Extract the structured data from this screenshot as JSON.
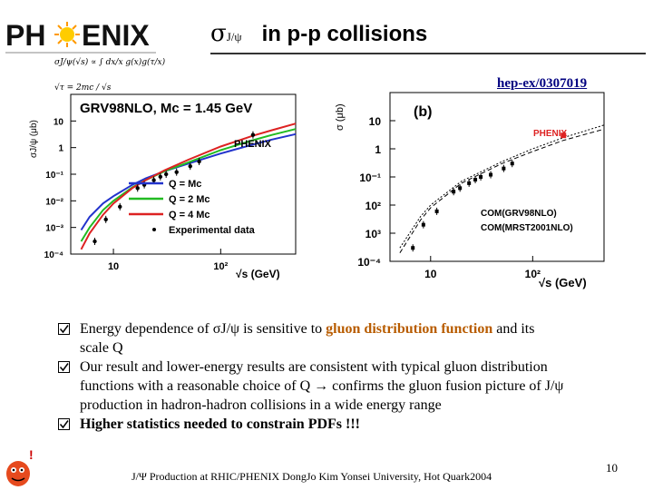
{
  "logo": {
    "text_left": "PH",
    "text_right": "ENIX"
  },
  "title": {
    "sigma": "σ",
    "subscript": "J/ψ",
    "rest": "in p-p collisions"
  },
  "reference": "hep-ex/0307019",
  "formulas": {
    "line1": "σJ/ψ(√s) ∝ ∫ dx/x g(x)g(τ/x)",
    "line2": "√τ = 2mc / √s"
  },
  "colors": {
    "blue": "#2233cc",
    "green": "#22bb22",
    "red": "#dd2222",
    "accent": "#b85c00",
    "link": "#000080"
  },
  "chart_data": [
    {
      "type": "line",
      "title": "GRV98NLO, Mc = 1.45 GeV",
      "annotation": "PHENIX",
      "ylabel": "σJ/ψ (μb)",
      "xlabel": "√s (GeV)",
      "log_x": true,
      "log_y": true,
      "xlim": [
        4,
        500
      ],
      "ylim": [
        0.0001,
        100
      ],
      "x_ticks": [
        "10",
        "10²"
      ],
      "y_ticks": [
        "10",
        "1",
        "10⁻¹",
        "10⁻²",
        "10⁻³",
        "10⁻⁴"
      ],
      "legend_placement": "bottom-right",
      "series": [
        {
          "name": "Q = Mc",
          "color": "#2233cc",
          "x": [
            5,
            6,
            8,
            10,
            15,
            20,
            30,
            50,
            100,
            200,
            300,
            500
          ],
          "y": [
            0.0008,
            0.0025,
            0.008,
            0.015,
            0.04,
            0.07,
            0.13,
            0.25,
            0.6,
            1.3,
            2.0,
            3.2
          ]
        },
        {
          "name": "Q = 2 Mc",
          "color": "#22bb22",
          "x": [
            5,
            6,
            8,
            10,
            15,
            20,
            30,
            50,
            100,
            200,
            300,
            500
          ],
          "y": [
            0.0003,
            0.001,
            0.0045,
            0.01,
            0.032,
            0.06,
            0.13,
            0.28,
            0.8,
            1.9,
            3.0,
            5.0
          ]
        },
        {
          "name": "Q = 4 Mc",
          "color": "#dd2222",
          "x": [
            5,
            6,
            8,
            10,
            15,
            20,
            30,
            50,
            100,
            200,
            300,
            500
          ],
          "y": [
            0.00015,
            0.0006,
            0.003,
            0.008,
            0.03,
            0.06,
            0.14,
            0.35,
            1.1,
            2.8,
            4.5,
            8.0
          ]
        },
        {
          "name": "Experimental data",
          "color": "#000000",
          "type": "scatter",
          "x": [
            6.7,
            8.5,
            11.5,
            16.8,
            19.4,
            23.8,
            27.4,
            31,
            38.8,
            52,
            63,
            200
          ],
          "y": [
            0.0003,
            0.002,
            0.006,
            0.03,
            0.04,
            0.06,
            0.08,
            0.1,
            0.12,
            0.2,
            0.3,
            3.0
          ]
        }
      ]
    },
    {
      "type": "scatter",
      "label": "(b)",
      "annotation": "PHENIX",
      "ylabel": "σ (μb)",
      "xlabel": "√s (GeV)",
      "log_x": true,
      "log_y": true,
      "xlim": [
        4,
        500
      ],
      "ylim": [
        0.0001,
        100
      ],
      "x_ticks": [
        "10",
        "10²"
      ],
      "y_ticks": [
        "10",
        "1",
        "10⁻¹",
        "10²",
        "10³",
        "10⁻⁴"
      ],
      "curves": [
        {
          "name": "COM(GRV98NLO)",
          "style": "dashed",
          "x": [
            5,
            8,
            10,
            20,
            50,
            100,
            200,
            500
          ],
          "y": [
            0.0002,
            0.003,
            0.008,
            0.06,
            0.3,
            0.8,
            2.0,
            5.0
          ]
        },
        {
          "name": "COM(MRST2001NLO)",
          "style": "dotted",
          "x": [
            5,
            8,
            10,
            20,
            50,
            100,
            200,
            500
          ],
          "y": [
            0.0003,
            0.004,
            0.01,
            0.07,
            0.35,
            1.0,
            2.5,
            7.0
          ]
        }
      ],
      "points": {
        "x": [
          6.7,
          8.5,
          11.5,
          16.8,
          19.4,
          23.8,
          27.4,
          31,
          38.8,
          52,
          63
        ],
        "y": [
          0.0003,
          0.002,
          0.006,
          0.03,
          0.04,
          0.06,
          0.08,
          0.1,
          0.12,
          0.2,
          0.3
        ]
      },
      "highlight_point": {
        "x": 200,
        "y": 3.0,
        "color": "#dd2222"
      }
    }
  ],
  "bullets": [
    {
      "parts": [
        {
          "t": "Energy dependence of ",
          "s": "n"
        },
        {
          "t": "σJ/ψ",
          "s": "n"
        },
        {
          "t": " is sensitive to ",
          "s": "n"
        },
        {
          "t": "gluon distribution function",
          "s": "hl"
        },
        {
          "t": " and its scale Q",
          "s": "n"
        }
      ]
    },
    {
      "parts": [
        {
          "t": "Our  result and lower-energy results are consistent with typical gluon distribution functions with a reasonable choice of Q → confirms the gluon fusion picture of J/ψ production in hadron-hadron collisions in a wide energy range",
          "s": "n"
        }
      ]
    },
    {
      "parts": [
        {
          "t": "Higher statistics needed to constrain PDFs !!!",
          "s": "b"
        }
      ]
    }
  ],
  "footer": "J/Ψ Production at RHIC/PHENIX  DongJo Kim Yonsei University, Hot Quark2004",
  "page_number": "10"
}
